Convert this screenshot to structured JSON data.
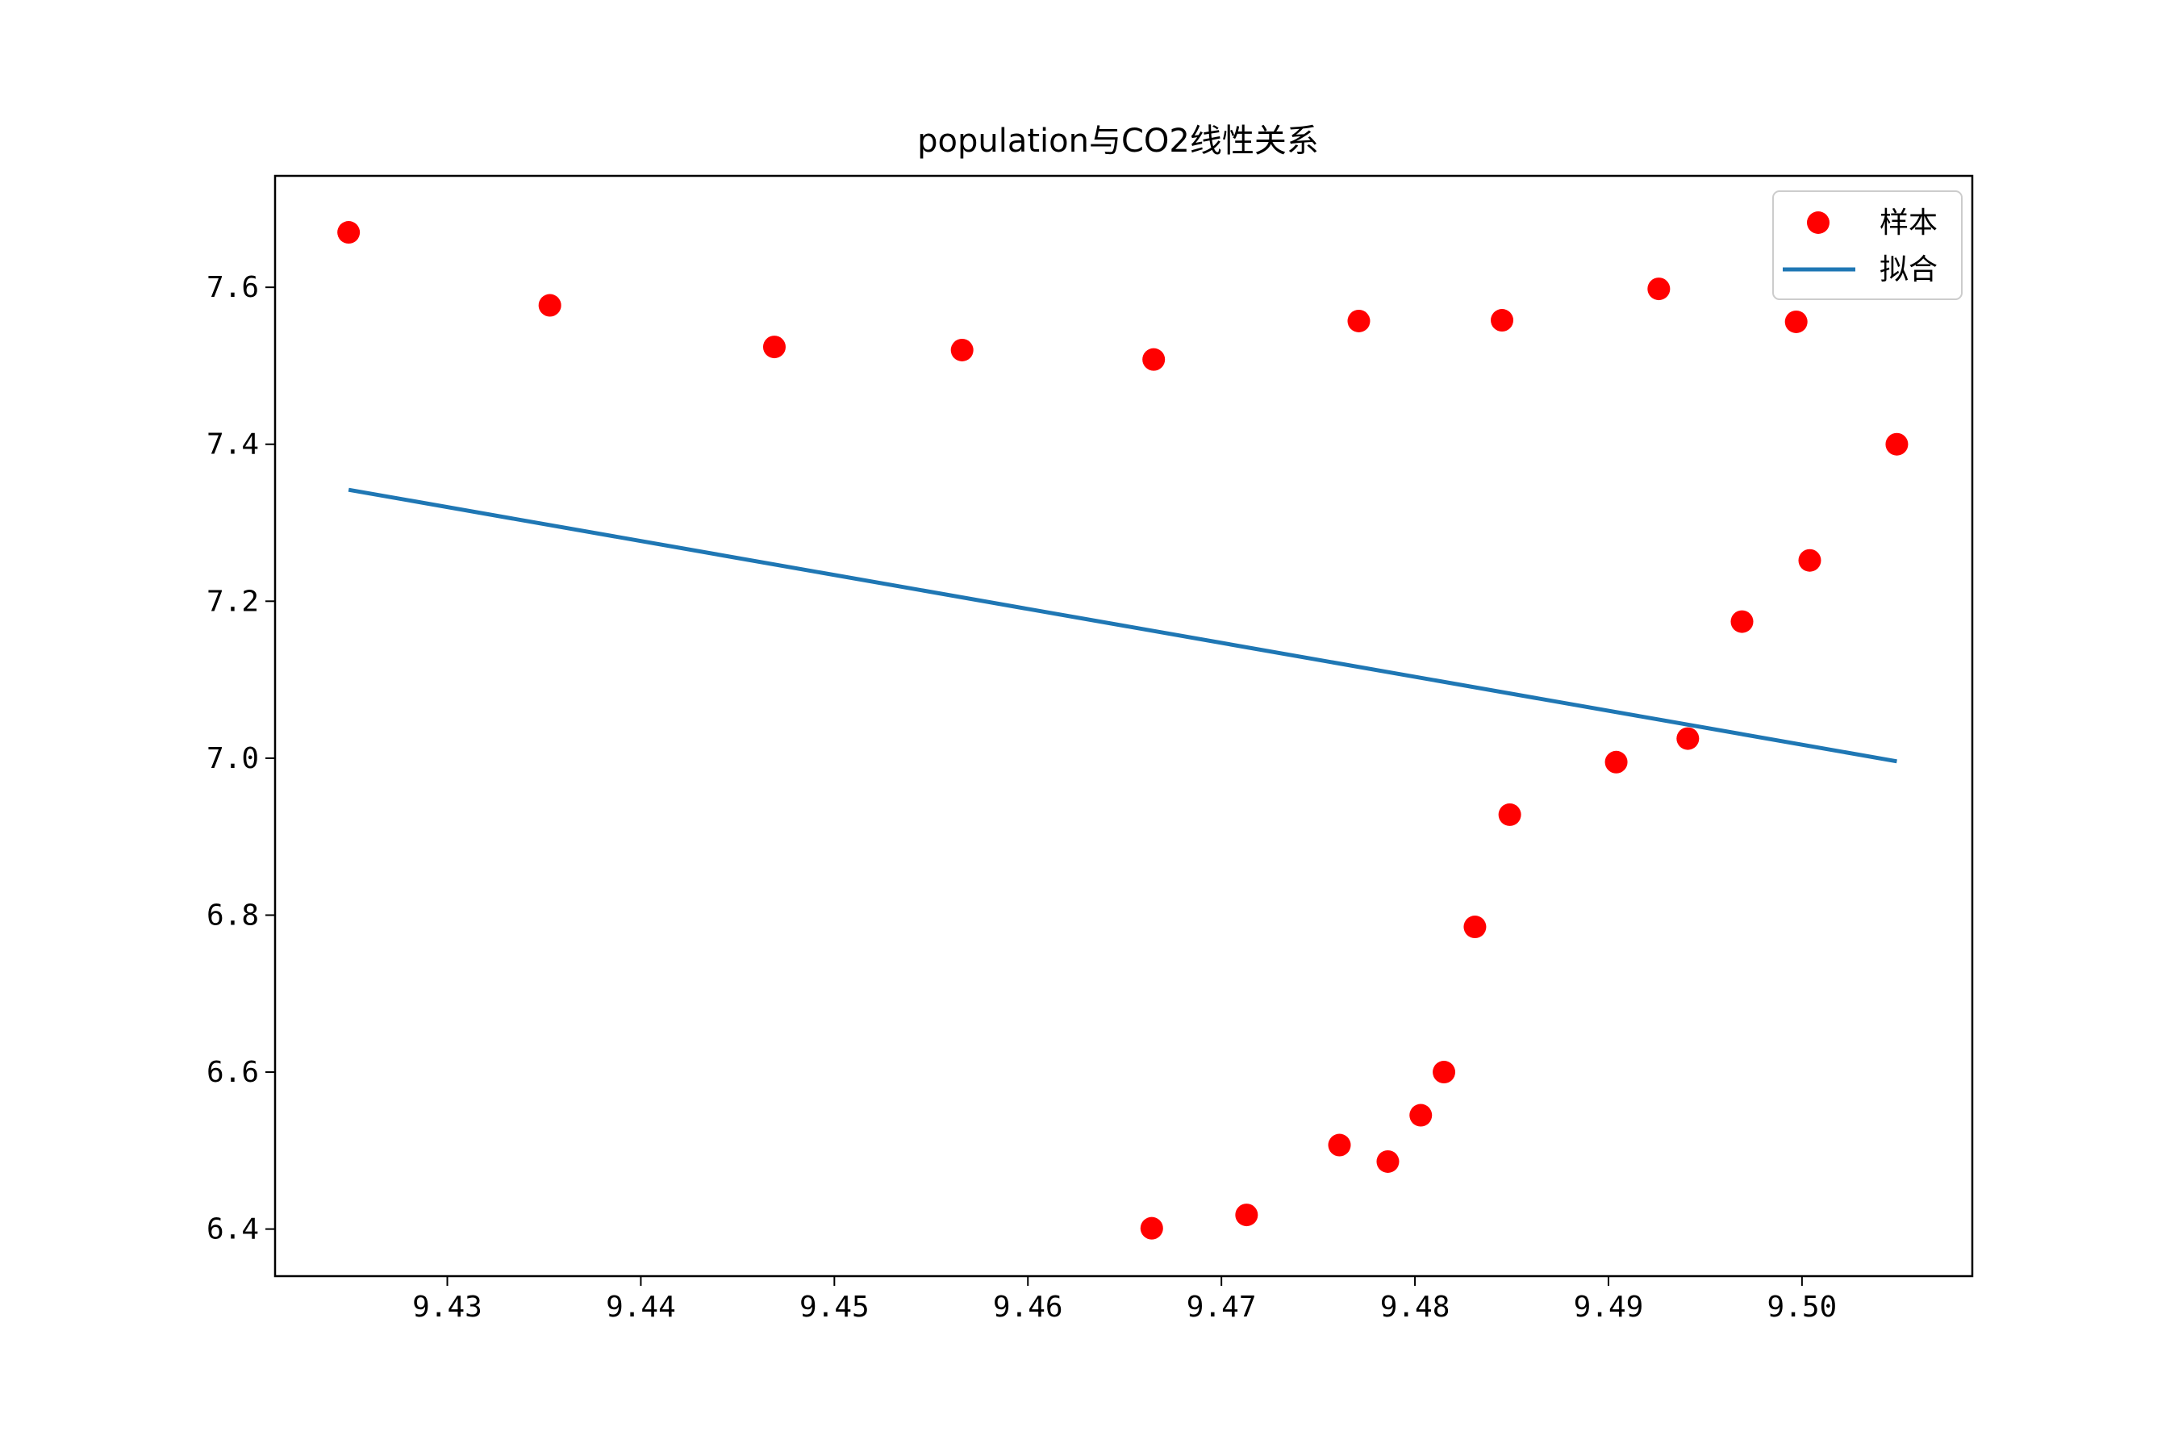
{
  "chart_data": {
    "type": "scatter",
    "title": "population与CO2线性关系",
    "xlabel": "",
    "ylabel": "",
    "xlim": [
      9.4211,
      9.5088
    ],
    "ylim": [
      6.34,
      7.742
    ],
    "x_ticks": [
      9.43,
      9.44,
      9.45,
      9.46,
      9.47,
      9.48,
      9.49,
      9.5
    ],
    "x_tick_labels": [
      "9.43",
      "9.44",
      "9.45",
      "9.46",
      "9.47",
      "9.48",
      "9.49",
      "9.50"
    ],
    "y_ticks": [
      6.4,
      6.6,
      6.8,
      7.0,
      7.2,
      7.4,
      7.6
    ],
    "y_tick_labels": [
      "6.4",
      "6.6",
      "6.8",
      "7.0",
      "7.2",
      "7.4",
      "7.6"
    ],
    "grid": false,
    "legend_position": "top-right",
    "series": [
      {
        "name": "样本",
        "type": "scatter",
        "color": "#ff0000",
        "x": [
          9.4249,
          9.4353,
          9.4469,
          9.4566,
          9.4665,
          9.4664,
          9.4713,
          9.4761,
          9.4771,
          9.4786,
          9.4803,
          9.4815,
          9.4831,
          9.4845,
          9.4849,
          9.4904,
          9.4926,
          9.4941,
          9.4969,
          9.4997,
          9.5004,
          9.5049
        ],
        "y": [
          7.67,
          7.577,
          7.524,
          7.52,
          7.508,
          6.401,
          6.418,
          6.507,
          7.557,
          6.486,
          6.545,
          6.6,
          6.785,
          7.558,
          6.928,
          6.995,
          7.598,
          7.025,
          7.174,
          7.556,
          7.252,
          7.4
        ]
      },
      {
        "name": "拟合",
        "type": "line",
        "color": "#1f77b4",
        "x": [
          9.4249,
          9.5049
        ],
        "y": [
          7.342,
          6.996
        ]
      }
    ]
  }
}
